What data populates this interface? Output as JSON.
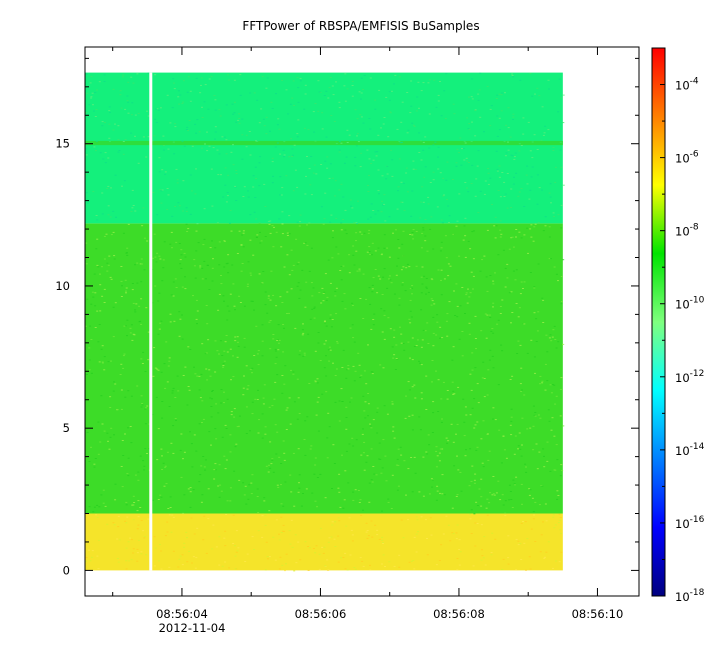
{
  "chart_data": {
    "type": "heatmap",
    "title": "FFTPower of RBSPA/EMFISIS  BuSamples",
    "xlabel": "",
    "ylabel": "",
    "x_tick_labels": [
      "08:56:04",
      "08:56:06",
      "08:56:08",
      "08:56:10"
    ],
    "x_date_label": "2012-11-04",
    "x_range": [
      "08:56:02.6",
      "08:56:10.6"
    ],
    "data_time_range": [
      "08:56:02.6",
      "08:56:09.5"
    ],
    "gap_time": "08:56:03.55",
    "y_ticks": [
      0,
      5,
      10,
      15
    ],
    "ylim": [
      -0.9,
      18.4
    ],
    "data_y_range": [
      0,
      17.5
    ],
    "z_scale": "log",
    "zlim": [
      1e-18,
      0.001
    ],
    "colorbar_tick_labels": [
      {
        "base": "10",
        "exp": "-4"
      },
      {
        "base": "10",
        "exp": "-6"
      },
      {
        "base": "10",
        "exp": "-8"
      },
      {
        "base": "10",
        "exp": "-10"
      },
      {
        "base": "10",
        "exp": "-12"
      },
      {
        "base": "10",
        "exp": "-14"
      },
      {
        "base": "10",
        "exp": "-16"
      },
      {
        "base": "10",
        "exp": "-18"
      }
    ],
    "colorbar_tick_values": [
      -4,
      -6,
      -8,
      -10,
      -12,
      -14,
      -16,
      -18
    ],
    "bands": [
      {
        "y_from": 0,
        "y_to": 2,
        "log10_power": -8.6,
        "color": "#f5e42a"
      },
      {
        "y_from": 2,
        "y_to": 12.2,
        "log10_power": -10.6,
        "color": "#3ddc28"
      },
      {
        "y_from": 12.2,
        "y_to": 17.5,
        "log10_power": -11.8,
        "color": "#14f07c"
      },
      {
        "y_from": 14.95,
        "y_to": 15.1,
        "log10_power": -10.9,
        "color": "#2ede3c"
      }
    ],
    "colormap": [
      "#00007f",
      "#0000ff",
      "#007fff",
      "#00ffff",
      "#7fff7f",
      "#00e400",
      "#ffff00",
      "#ff7f00",
      "#ff0000"
    ],
    "grid": false,
    "legend": "colorbar-right"
  }
}
